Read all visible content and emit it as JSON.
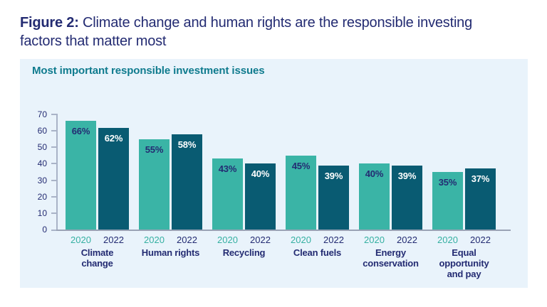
{
  "figure": {
    "label": "Figure 2:",
    "title_line1": " Climate change and human rights are the responsible investing",
    "title_line2": "factors that matter most"
  },
  "panel": {
    "title": "Most important responsible investment issues",
    "background": "#e9f3fb"
  },
  "colors": {
    "navy_text": "#232b72",
    "chart_title_teal": "#0f7b8e",
    "axis_line": "#a9b3c7",
    "baseline": "#9aa3b5",
    "page_background": "#ffffff"
  },
  "chart_data": {
    "type": "bar",
    "title": "Most important responsible investment issues",
    "categories": [
      "Climate change",
      "Human rights",
      "Recycling",
      "Clean fuels",
      "Energy\nconservation",
      "Equal opportunity\nand pay"
    ],
    "series": [
      {
        "name": "2020",
        "values": [
          66,
          55,
          43,
          45,
          40,
          35
        ],
        "color": "#3ab4a6",
        "value_label_color": "#232b72",
        "year_label_color": "#35b0a2"
      },
      {
        "name": "2022",
        "values": [
          62,
          58,
          40,
          39,
          39,
          37
        ],
        "color": "#095b72",
        "value_label_color": "#ffffff",
        "year_label_color": "#232b72"
      }
    ],
    "value_suffix": "%",
    "xlabel": "",
    "ylabel": "",
    "ylim": [
      0,
      70
    ],
    "yticks": [
      0,
      10,
      20,
      30,
      40,
      50,
      60,
      70
    ],
    "grid": false,
    "legend_position": "none (years labeled under each bar)"
  }
}
